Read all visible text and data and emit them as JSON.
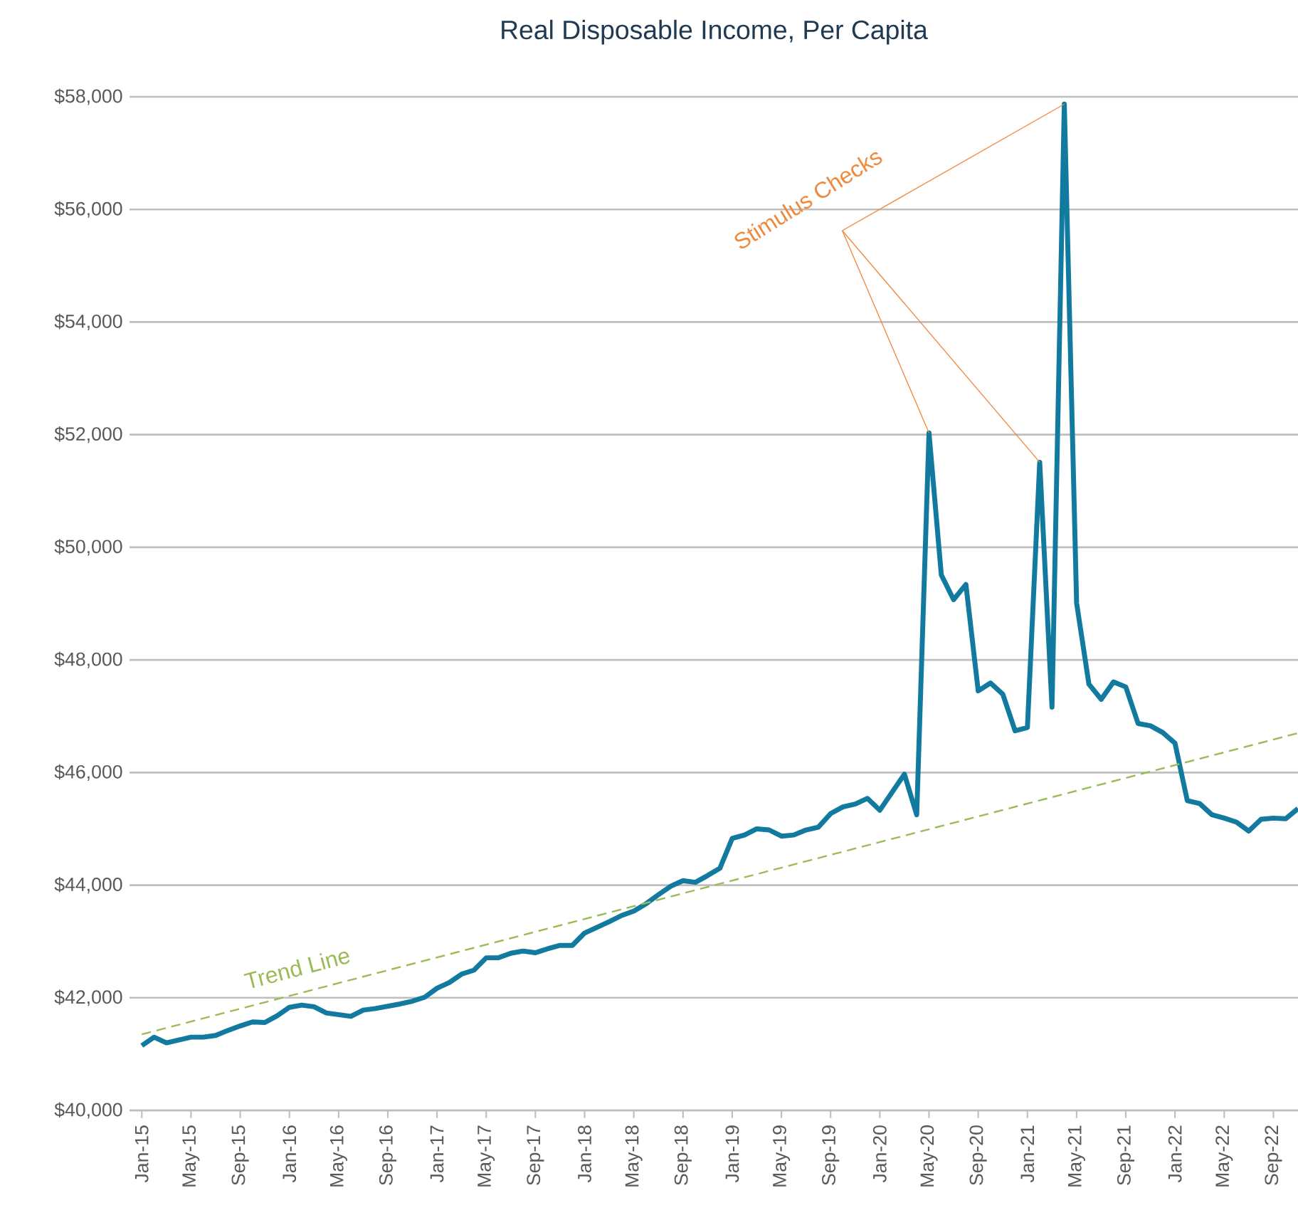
{
  "chart_data": {
    "type": "line",
    "title": "Real Disposable Income, Per Capita",
    "x": [
      "2015-01",
      "2015-02",
      "2015-03",
      "2015-04",
      "2015-05",
      "2015-06",
      "2015-07",
      "2015-08",
      "2015-09",
      "2015-10",
      "2015-11",
      "2015-12",
      "2016-01",
      "2016-02",
      "2016-03",
      "2016-04",
      "2016-05",
      "2016-06",
      "2016-07",
      "2016-08",
      "2016-09",
      "2016-10",
      "2016-11",
      "2016-12",
      "2017-01",
      "2017-02",
      "2017-03",
      "2017-04",
      "2017-05",
      "2017-06",
      "2017-07",
      "2017-08",
      "2017-09",
      "2017-10",
      "2017-11",
      "2017-12",
      "2018-01",
      "2018-02",
      "2018-03",
      "2018-04",
      "2018-05",
      "2018-06",
      "2018-07",
      "2018-08",
      "2018-09",
      "2018-10",
      "2018-11",
      "2018-12",
      "2019-01",
      "2019-02",
      "2019-03",
      "2019-04",
      "2019-05",
      "2019-06",
      "2019-07",
      "2019-08",
      "2019-09",
      "2019-10",
      "2019-11",
      "2019-12",
      "2020-01",
      "2020-02",
      "2020-03",
      "2020-04",
      "2020-05",
      "2020-06",
      "2020-07",
      "2020-08",
      "2020-09",
      "2020-10",
      "2020-11",
      "2020-12",
      "2021-01",
      "2021-02",
      "2021-03",
      "2021-04",
      "2021-05",
      "2021-06",
      "2021-07",
      "2021-08",
      "2021-09",
      "2021-10",
      "2021-11",
      "2021-12",
      "2022-01",
      "2022-02",
      "2022-03",
      "2022-04",
      "2022-05",
      "2022-06",
      "2022-07",
      "2022-08",
      "2022-09",
      "2022-10",
      "2022-11"
    ],
    "series": [
      {
        "color": "#117a9e",
        "values": [
          41150,
          41300,
          41200,
          41250,
          41300,
          41300,
          41330,
          41420,
          41500,
          41570,
          41560,
          41680,
          41830,
          41870,
          41840,
          41730,
          41700,
          41670,
          41780,
          41810,
          41850,
          41890,
          41940,
          42010,
          42170,
          42270,
          42420,
          42490,
          42710,
          42710,
          42790,
          42830,
          42800,
          42870,
          42930,
          42930,
          43150,
          43250,
          43350,
          43460,
          43540,
          43670,
          43830,
          43980,
          44080,
          44050,
          44170,
          44300,
          44830,
          44890,
          45000,
          44980,
          44870,
          44890,
          44980,
          45030,
          45270,
          45390,
          45440,
          45540,
          45330,
          45650,
          45970,
          45250,
          52030,
          49510,
          49070,
          49340,
          47450,
          47590,
          47390,
          46740,
          46800,
          51510,
          47160,
          57870,
          49010,
          47570,
          47300,
          47610,
          47520,
          46870,
          46830,
          46710,
          46520,
          45500,
          45450,
          45250,
          45190,
          45120,
          44960,
          45170,
          45190,
          45180,
          45360
        ]
      },
      {
        "name": "Trend Line",
        "type": "line",
        "line_style": "dashed",
        "color": "#9bbb59",
        "x": [
          "2015-01",
          "2022-11"
        ],
        "values": [
          41350,
          46700
        ]
      }
    ],
    "xlim": [
      "2014-12",
      "2022-11"
    ],
    "xticks": [
      {
        "value": "2015-01",
        "label": "Jan-15"
      },
      {
        "value": "2015-05",
        "label": "May-15"
      },
      {
        "value": "2015-09",
        "label": "Sep-15"
      },
      {
        "value": "2016-01",
        "label": "Jan-16"
      },
      {
        "value": "2016-05",
        "label": "May-16"
      },
      {
        "value": "2016-09",
        "label": "Sep-16"
      },
      {
        "value": "2017-01",
        "label": "Jan-17"
      },
      {
        "value": "2017-05",
        "label": "May-17"
      },
      {
        "value": "2017-09",
        "label": "Sep-17"
      },
      {
        "value": "2018-01",
        "label": "Jan-18"
      },
      {
        "value": "2018-05",
        "label": "May-18"
      },
      {
        "value": "2018-09",
        "label": "Sep-18"
      },
      {
        "value": "2019-01",
        "label": "Jan-19"
      },
      {
        "value": "2019-05",
        "label": "May-19"
      },
      {
        "value": "2019-09",
        "label": "Sep-19"
      },
      {
        "value": "2020-01",
        "label": "Jan-20"
      },
      {
        "value": "2020-05",
        "label": "May-20"
      },
      {
        "value": "2020-09",
        "label": "Sep-20"
      },
      {
        "value": "2021-01",
        "label": "Jan-21"
      },
      {
        "value": "2021-05",
        "label": "May-21"
      },
      {
        "value": "2021-09",
        "label": "Sep-21"
      },
      {
        "value": "2022-01",
        "label": "Jan-22"
      },
      {
        "value": "2022-05",
        "label": "May-22"
      },
      {
        "value": "2022-09",
        "label": "Sep-22"
      }
    ],
    "ylim": [
      40000,
      58000
    ],
    "yticks": [
      {
        "value": 40000,
        "label": "$40,000"
      },
      {
        "value": 42000,
        "label": "$42,000"
      },
      {
        "value": 44000,
        "label": "$44,000"
      },
      {
        "value": 46000,
        "label": "$46,000"
      },
      {
        "value": 48000,
        "label": "$48,000"
      },
      {
        "value": 50000,
        "label": "$50,000"
      },
      {
        "value": 52000,
        "label": "$52,000"
      },
      {
        "value": 54000,
        "label": "$54,000"
      },
      {
        "value": 56000,
        "label": "$56,000"
      },
      {
        "value": 58000,
        "label": "$58,000"
      }
    ],
    "grid": "y",
    "marker": "none",
    "line_style": "solid",
    "annotations": [
      {
        "text": "Stimulus Checks",
        "x": "2021-04",
        "y": 57870
      }
    ]
  }
}
